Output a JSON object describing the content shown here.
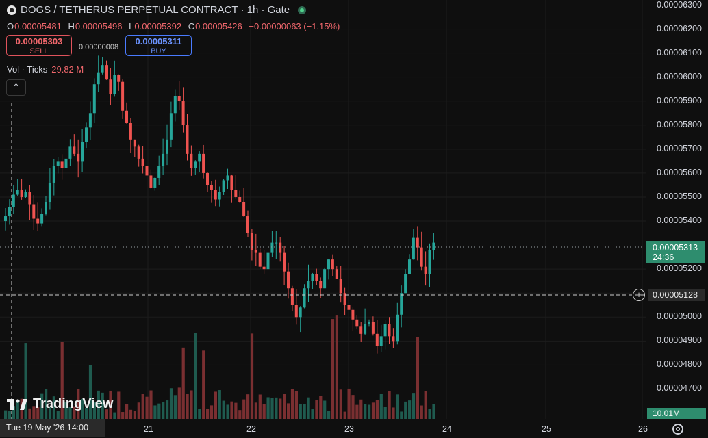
{
  "header": {
    "title": "DOGS / TETHERUS PERPETUAL CONTRACT · 1h · Gate",
    "symbol_icon": "dog-icon",
    "status_icon": "market-open-dot"
  },
  "ohlc": {
    "o_label": "O",
    "o_value": "0.00005481",
    "h_label": "H",
    "h_value": "0.00005496",
    "l_label": "L",
    "l_value": "0.00005392",
    "c_label": "C",
    "c_value": "0.00005426",
    "change": "−0.00000063 (−1.15%)"
  },
  "trade": {
    "sell_price": "0.00005303",
    "sell_label": "SELL",
    "spread": "0.00000008",
    "buy_price": "0.00005311",
    "buy_label": "BUY"
  },
  "volume_legend": {
    "label": "Vol · Ticks",
    "value": "29.82 M"
  },
  "collapse_icon": "chevron-up-icon",
  "price_axis": [
    "0.00006300",
    "0.00006200",
    "0.00006100",
    "0.00006000",
    "0.00005900",
    "0.00005800",
    "0.00005700",
    "0.00005600",
    "0.00005500",
    "0.00005400",
    "0.00005200",
    "0.00005100",
    "0.00005000",
    "0.00004900",
    "0.00004800",
    "0.00004700"
  ],
  "last_price": {
    "value": "0.00005313",
    "countdown": "24:36"
  },
  "crosshair": {
    "price": "0.00005128",
    "time": "Tue 19 May '26   14:00"
  },
  "volume_last": "10.01M",
  "time_axis": [
    "21",
    "22",
    "23",
    "24",
    "25",
    "26"
  ],
  "brand": "TradingView",
  "colors": {
    "up": "#26a69a",
    "down": "#ef5350",
    "background": "#0f0f0f"
  },
  "chart_data": {
    "type": "candlestick",
    "title": "DOGS / TETHERUS PERPETUAL CONTRACT · 1h · Gate",
    "ylim": [
      4.65e-05,
      6.31e-05
    ],
    "x_ticks": [
      "21",
      "22",
      "23",
      "24",
      "25",
      "26"
    ],
    "close_path": [
      5.42e-05,
      5.46e-05,
      5.51e-05,
      5.53e-05,
      5.5e-05,
      5.52e-05,
      5.47e-05,
      5.41e-05,
      5.39e-05,
      5.43e-05,
      5.48e-05,
      5.56e-05,
      5.63e-05,
      5.65e-05,
      5.62e-05,
      5.66e-05,
      5.71e-05,
      5.68e-05,
      5.65e-05,
      5.73e-05,
      5.79e-05,
      5.85e-05,
      5.97e-05,
      6.02e-05,
      6.05e-05,
      5.99e-05,
      5.93e-05,
      6.01e-05,
      5.98e-05,
      5.86e-05,
      5.81e-05,
      5.74e-05,
      5.71e-05,
      5.66e-05,
      5.63e-05,
      5.59e-05,
      5.54e-05,
      5.58e-05,
      5.63e-05,
      5.68e-05,
      5.74e-05,
      5.85e-05,
      5.92e-05,
      5.9e-05,
      5.8e-05,
      5.68e-05,
      5.62e-05,
      5.65e-05,
      5.68e-05,
      5.6e-05,
      5.55e-05,
      5.53e-05,
      5.49e-05,
      5.52e-05,
      5.57e-05,
      5.59e-05,
      5.53e-05,
      5.5e-05,
      5.48e-05,
      5.42e-05,
      5.35e-05,
      5.28e-05,
      5.27e-05,
      5.21e-05,
      5.2e-05,
      5.27e-05,
      5.31e-05,
      5.31e-05,
      5.27e-05,
      5.19e-05,
      5.12e-05,
      5.05e-05,
      5e-05,
      5.04e-05,
      5.12e-05,
      5.15e-05,
      5.18e-05,
      5.15e-05,
      5.12e-05,
      5.2e-05,
      5.24e-05,
      5.2e-05,
      5.16e-05,
      5.1e-05,
      5.05e-05,
      5.03e-05,
      4.99e-05,
      4.96e-05,
      4.93e-05,
      4.97e-05,
      4.98e-05,
      4.93e-05,
      4.88e-05,
      4.92e-05,
      4.97e-05,
      4.92e-05,
      4.9e-05,
      5.01e-05,
      5.1e-05,
      5.18e-05,
      5.24e-05,
      5.33e-05,
      5.29e-05,
      5.21e-05,
      5.18e-05,
      5.28e-05,
      5.31e-05
    ],
    "volume_scale_max_M": 40
  }
}
